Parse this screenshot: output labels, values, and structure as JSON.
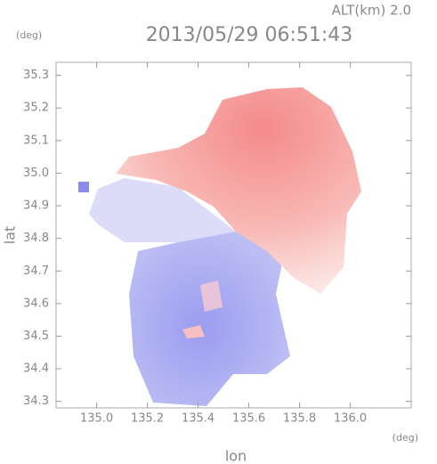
{
  "chart_data": {
    "type": "radar-map",
    "title": "2013/05/29 06:51:43",
    "annotation": "ALT(km) 2.0",
    "x_label": "lon",
    "y_label": "lat",
    "x_unit": "(deg)",
    "y_unit": "(deg)",
    "xlim": [
      134.84,
      136.24
    ],
    "ylim": [
      34.28,
      35.34
    ],
    "xticks": [
      {
        "value": 135,
        "label": "135.0"
      },
      135.2,
      135.4,
      135.6,
      135.8,
      {
        "value": 136,
        "label": "136.0"
      }
    ],
    "yticks": [
      34.3,
      34.4,
      34.5,
      34.6,
      34.7,
      34.8,
      34.9,
      {
        "value": 35,
        "label": "35.0"
      },
      35.1,
      35.2,
      35.3
    ]
  }
}
